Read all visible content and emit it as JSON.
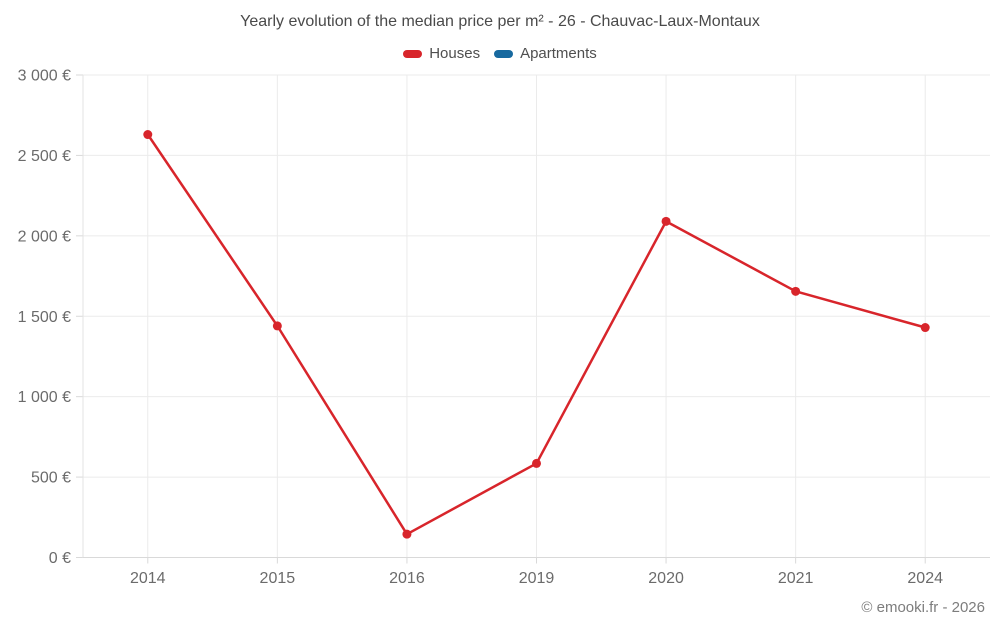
{
  "title": "Yearly evolution of the median price per m² - 26 - Chauvac-Laux-Montaux",
  "legend": {
    "items": [
      {
        "label": "Houses",
        "color": "#d8252b"
      },
      {
        "label": "Apartments",
        "color": "#17699f"
      }
    ]
  },
  "footer": {
    "credit": "© emooki.fr - 2026"
  },
  "chart_data": {
    "type": "line",
    "title": "Yearly evolution of the median price per m² - 26 - Chauvac-Laux-Montaux",
    "categories": [
      "2014",
      "2015",
      "2016",
      "2019",
      "2020",
      "2021",
      "2024"
    ],
    "series": [
      {
        "name": "Houses",
        "color": "#d8252b",
        "values": [
          2630,
          1440,
          145,
          585,
          2090,
          1655,
          1430
        ]
      },
      {
        "name": "Apartments",
        "color": "#17699f",
        "values": []
      }
    ],
    "ylabel": "",
    "xlabel": "",
    "ylim": [
      0,
      3000
    ],
    "y_ticks": [
      {
        "value": 0,
        "label": "0 €"
      },
      {
        "value": 500,
        "label": "500 €"
      },
      {
        "value": 1000,
        "label": "1 000 €"
      },
      {
        "value": 1500,
        "label": "1 500 €"
      },
      {
        "value": 2000,
        "label": "2 000 €"
      },
      {
        "value": 2500,
        "label": "2 500 €"
      },
      {
        "value": 3000,
        "label": "3 000 €"
      }
    ],
    "grid": true,
    "legend_position": "top",
    "marker": "circle"
  }
}
